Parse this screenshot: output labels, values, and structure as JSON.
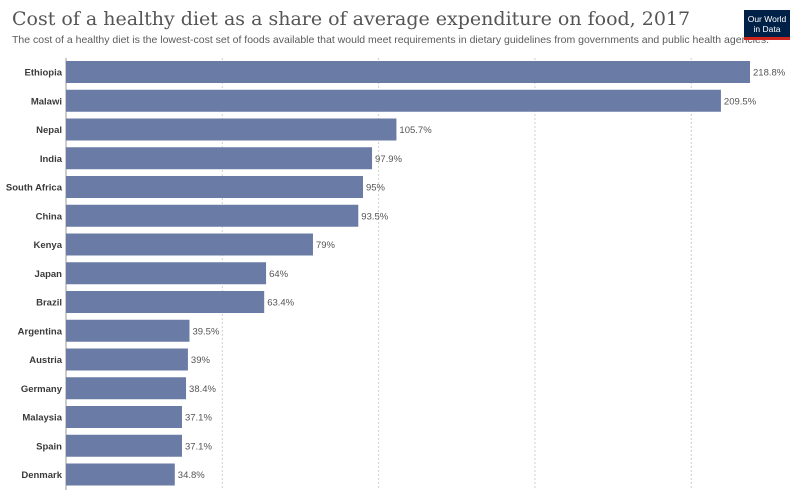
{
  "header": {
    "title": "Cost of a healthy diet as a share of average expenditure on food, 2017",
    "subtitle": "The cost of a healthy diet is the lowest-cost set of foods available that would meet requirements in dietary guidelines from governments and public health agencies.",
    "logo_line1": "Our World",
    "logo_line2": "in Data"
  },
  "colors": {
    "bar": "#6a7ba6",
    "logo_bg": "#002147",
    "logo_accent": "#ce261e"
  },
  "chart_data": {
    "type": "bar",
    "orientation": "horizontal",
    "categories": [
      "Ethiopia",
      "Malawi",
      "Nepal",
      "India",
      "South Africa",
      "China",
      "Kenya",
      "Japan",
      "Brazil",
      "Argentina",
      "Austria",
      "Germany",
      "Malaysia",
      "Spain",
      "Denmark"
    ],
    "values": [
      218.8,
      209.5,
      105.7,
      97.9,
      95,
      93.5,
      79,
      64,
      63.4,
      39.5,
      39,
      38.4,
      37.1,
      37.1,
      34.8
    ],
    "labels": [
      "218.8%",
      "209.5%",
      "105.7%",
      "97.9%",
      "95%",
      "93.5%",
      "79%",
      "64%",
      "63.4%",
      "39.5%",
      "39%",
      "38.4%",
      "37.1%",
      "37.1%",
      "34.8%"
    ],
    "xlim": [
      0,
      220
    ],
    "gridlines": [
      0,
      50,
      100,
      150,
      200
    ],
    "grid": true
  }
}
